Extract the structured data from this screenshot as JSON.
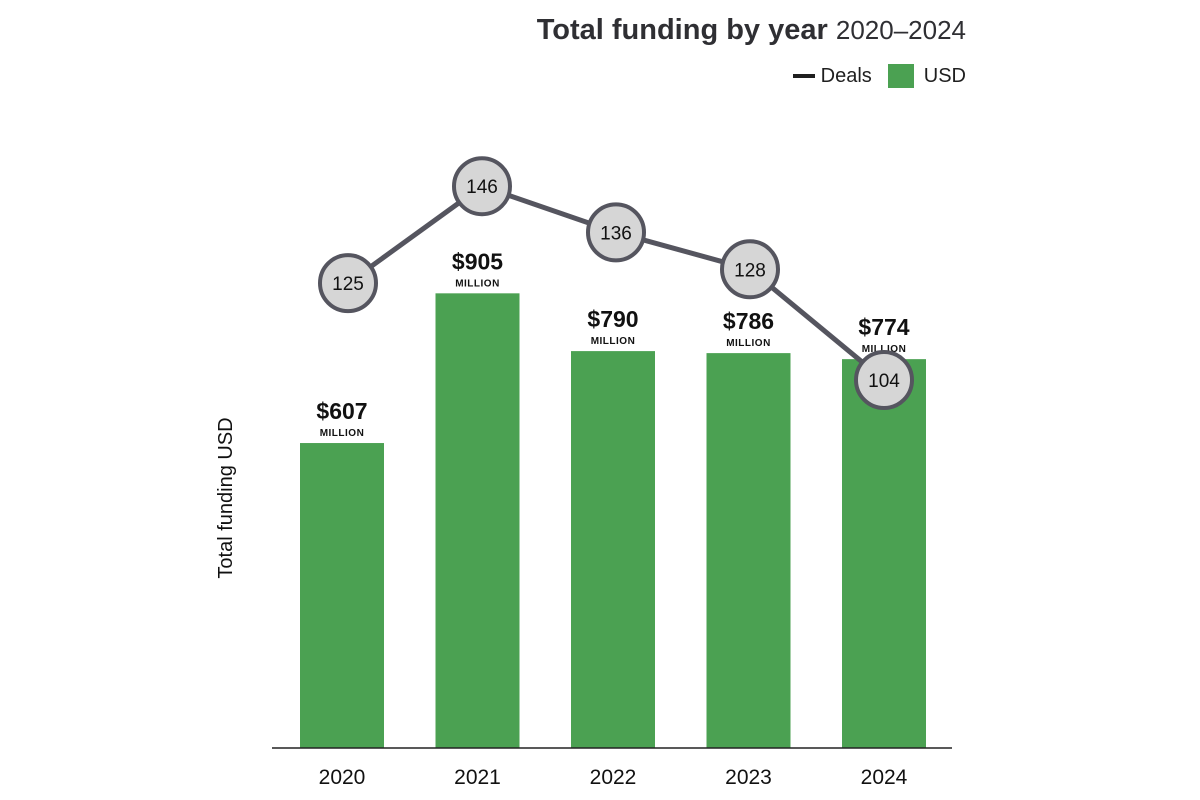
{
  "title": {
    "main": "Total funding by year",
    "range": "2020–2024"
  },
  "legend": {
    "line_label": "Deals",
    "bar_label": "USD"
  },
  "colors": {
    "bar": "#4ba152",
    "line": "#55555f",
    "marker_fill": "#d6d6d6",
    "axis": "#222222"
  },
  "chart_data": {
    "type": "bar",
    "categories": [
      "2020",
      "2021",
      "2022",
      "2023",
      "2024"
    ],
    "series": [
      {
        "name": "USD",
        "type": "bar",
        "values": [
          607,
          905,
          790,
          786,
          774
        ],
        "labels": [
          "$607",
          "$905",
          "$790",
          "$786",
          "$774"
        ],
        "unit_label": "MILLION"
      },
      {
        "name": "Deals",
        "type": "line",
        "values": [
          125,
          146,
          136,
          128,
          104
        ],
        "labels": [
          "125",
          "146",
          "136",
          "128",
          "104"
        ]
      }
    ],
    "ylabel": "Total funding USD",
    "xlabel": "",
    "grid": false,
    "legend_position": "top-right"
  }
}
